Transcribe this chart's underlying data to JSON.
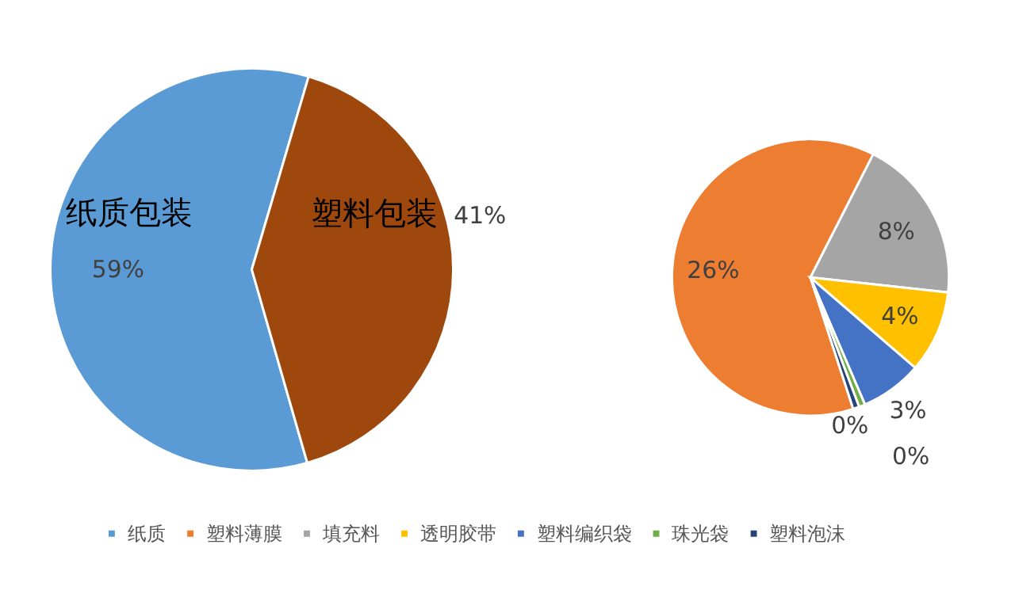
{
  "chart_data": [
    {
      "type": "pie",
      "categories": [
        "纸质包装",
        "塑料包装"
      ],
      "values": [
        59,
        41
      ],
      "colors": [
        "#5b9bd5",
        "#9e480e"
      ],
      "value_labels": [
        "59%",
        "41%"
      ],
      "legend": false
    },
    {
      "type": "pie",
      "categories": [
        "纸质",
        "塑料薄膜",
        "填充料",
        "透明胶带",
        "塑料编织袋",
        "珠光袋",
        "塑料泡沫"
      ],
      "values": [
        null,
        26,
        8,
        4,
        3,
        0.3,
        0.3
      ],
      "colors": [
        "#5b9bd5",
        "#ed7d31",
        "#a5a5a5",
        "#ffc000",
        "#4472c4",
        "#70ad47",
        "#264478"
      ],
      "value_labels": [
        null,
        "26%",
        "8%",
        "4%",
        "3%",
        "0%",
        "0%"
      ],
      "legend": "bottom"
    }
  ]
}
